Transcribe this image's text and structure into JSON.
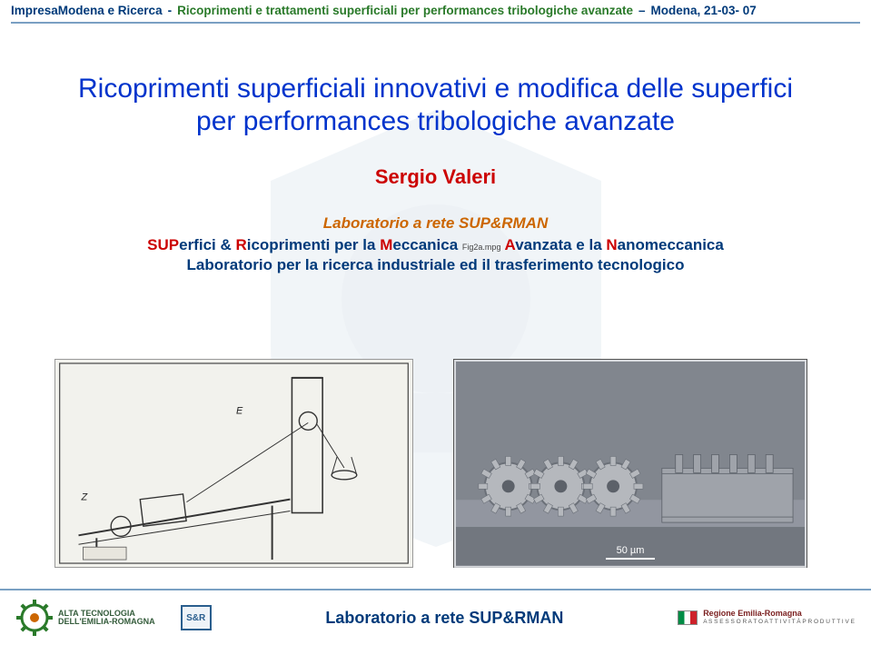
{
  "header": {
    "org": "ImpresaModena e Ricerca",
    "topic": "Ricoprimenti e trattamenti  superficiali per performances tribologiche avanzate",
    "place_date": "Modena, 21-03- 07"
  },
  "title": "Ricoprimenti superficiali innovativi e modifica delle superfici per performances tribologiche avanzate",
  "author": "Sergio Valeri",
  "lab_line": "Laboratorio a rete SUP&RMAN",
  "sup_line": {
    "prefix_red": "SUP",
    "pre_blue": "erfici & ",
    "r_red": "R",
    "mid_blue": "icoprimenti per la ",
    "m_red": "M",
    "mid2_blue": "eccanica ",
    "fig_note": "Fig2a.mpg",
    "a_red": "A",
    "post_blue": "vanzata e la ",
    "n_red": "N",
    "end_blue": "anomeccanica"
  },
  "transfer_line": "Laboratorio per la ricerca industriale ed il trasferimento tecnologico",
  "scale_label": "50 µm",
  "footer": {
    "alta": "ALTA TECNOLOGIA\nDELL'EMILIA-ROMAGNA",
    "sr_badge": "S&R",
    "center": "Laboratorio a rete SUP&RMAN",
    "region": "Regione Emilia-Romagna",
    "region_sub": "A S S E S S O R A T O  A T T I V I T À  P R O D U T T I V E"
  },
  "colors": {
    "header_blue": "#003a7a",
    "header_green": "#2a7a2a",
    "title_blue": "#0033cc",
    "author_red": "#cc0000",
    "lab_orange": "#cc6600",
    "rule": "#7aa0c3"
  }
}
